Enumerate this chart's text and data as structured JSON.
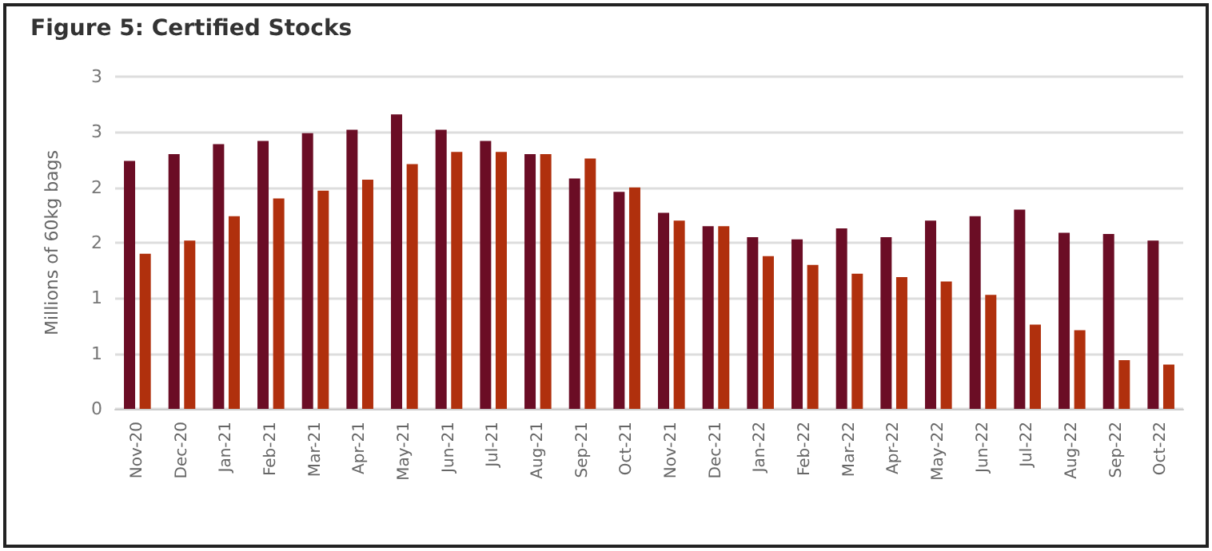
{
  "chart_data": {
    "type": "bar",
    "title": "Figure 5: Certified Stocks",
    "ylabel": "Millions of 60kg bags",
    "categories": [
      "Nov-20",
      "Dec-20",
      "Jan-21",
      "Feb-21",
      "Mar-21",
      "Apr-21",
      "May-21",
      "Jun-21",
      "Jul-21",
      "Aug-21",
      "Sep-21",
      "Oct-21",
      "Nov-21",
      "Dec-21",
      "Jan-22",
      "Feb-22",
      "Mar-22",
      "Apr-22",
      "May-22",
      "Jun-22",
      "Jul-22",
      "Aug-22",
      "Sep-22",
      "Oct-22"
    ],
    "series": [
      {
        "color": "#6b0d25",
        "values": [
          2.24,
          2.3,
          2.39,
          2.42,
          2.49,
          2.52,
          2.66,
          2.52,
          2.42,
          2.3,
          2.08,
          1.96,
          1.77,
          1.65,
          1.55,
          1.53,
          1.63,
          1.55,
          1.7,
          1.74,
          1.8,
          1.59,
          1.58,
          1.52
        ]
      },
      {
        "color": "#b0300d",
        "values": [
          1.4,
          1.52,
          1.74,
          1.9,
          1.97,
          2.07,
          2.21,
          2.32,
          2.32,
          2.3,
          2.26,
          2.0,
          1.7,
          1.65,
          1.38,
          1.3,
          1.22,
          1.19,
          1.15,
          1.03,
          0.76,
          0.71,
          0.44,
          0.4
        ]
      }
    ],
    "ylim": [
      0,
      3
    ],
    "yticks": [
      0,
      {
        "value": 0.5,
        "label": "1"
      },
      1,
      {
        "value": 1.5,
        "label": "2"
      },
      2,
      {
        "value": 2.5,
        "label": "3"
      },
      3
    ],
    "grid": "y"
  }
}
